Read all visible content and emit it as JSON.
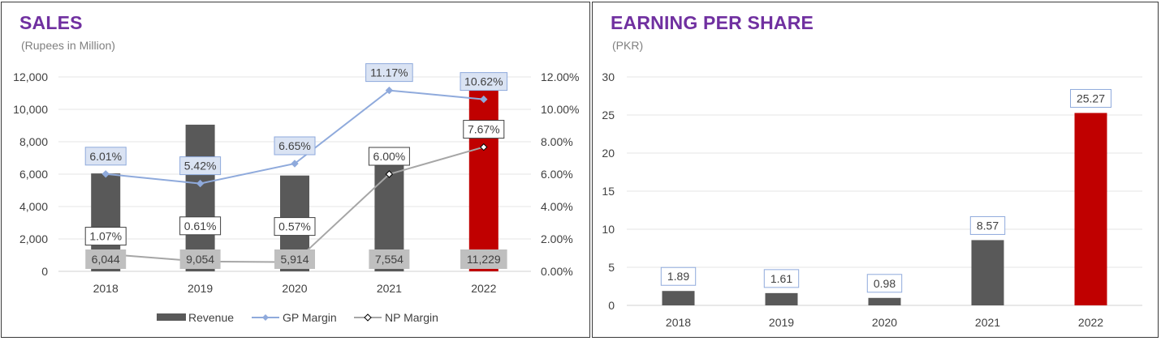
{
  "colors": {
    "title": "#7030a0",
    "bar": "#595959",
    "bar_highlight": "#c00000",
    "gp_line": "#8faadc",
    "np_line": "#a6a6a6"
  },
  "chart_data": [
    {
      "type": "bar",
      "title": "SALES",
      "subtitle": "(Rupees in Million)",
      "categories": [
        "2018",
        "2019",
        "2020",
        "2021",
        "2022"
      ],
      "ylim": [
        0,
        12000
      ],
      "y_ticks": [
        "0",
        "2,000",
        "4,000",
        "6,000",
        "8,000",
        "10,000",
        "12,000"
      ],
      "y2lim": [
        0,
        12
      ],
      "y2_ticks": [
        "0.00%",
        "2.00%",
        "4.00%",
        "6.00%",
        "8.00%",
        "10.00%",
        "12.00%"
      ],
      "grid": true,
      "legend_position": "bottom",
      "series": [
        {
          "name": "Revenue",
          "type": "bar",
          "values": [
            6044,
            9054,
            5914,
            7554,
            11229
          ],
          "labels": [
            "6,044",
            "9,054",
            "5,914",
            "7,554",
            "11,229"
          ]
        },
        {
          "name": "GP Margin",
          "type": "line",
          "axis": "secondary",
          "values": [
            6.01,
            5.42,
            6.65,
            11.17,
            10.62
          ],
          "labels": [
            "6.01%",
            "5.42%",
            "6.65%",
            "11.17%",
            "10.62%"
          ]
        },
        {
          "name": "NP Margin",
          "type": "line",
          "axis": "secondary",
          "values": [
            1.07,
            0.61,
            0.57,
            6.0,
            7.67
          ],
          "labels": [
            "1.07%",
            "0.61%",
            "0.57%",
            "6.00%",
            "7.67%"
          ]
        }
      ],
      "highlight_index": 4
    },
    {
      "type": "bar",
      "title": "EARNING PER SHARE",
      "subtitle": "(PKR)",
      "categories": [
        "2018",
        "2019",
        "2020",
        "2021",
        "2022"
      ],
      "ylim": [
        0,
        30
      ],
      "y_ticks": [
        "0",
        "5",
        "10",
        "15",
        "20",
        "25",
        "30"
      ],
      "grid": true,
      "series": [
        {
          "values": [
            1.89,
            1.61,
            0.98,
            8.57,
            25.27
          ],
          "labels": [
            "1.89",
            "1.61",
            "0.98",
            "8.57",
            "25.27"
          ]
        }
      ],
      "highlight_index": 4
    }
  ]
}
